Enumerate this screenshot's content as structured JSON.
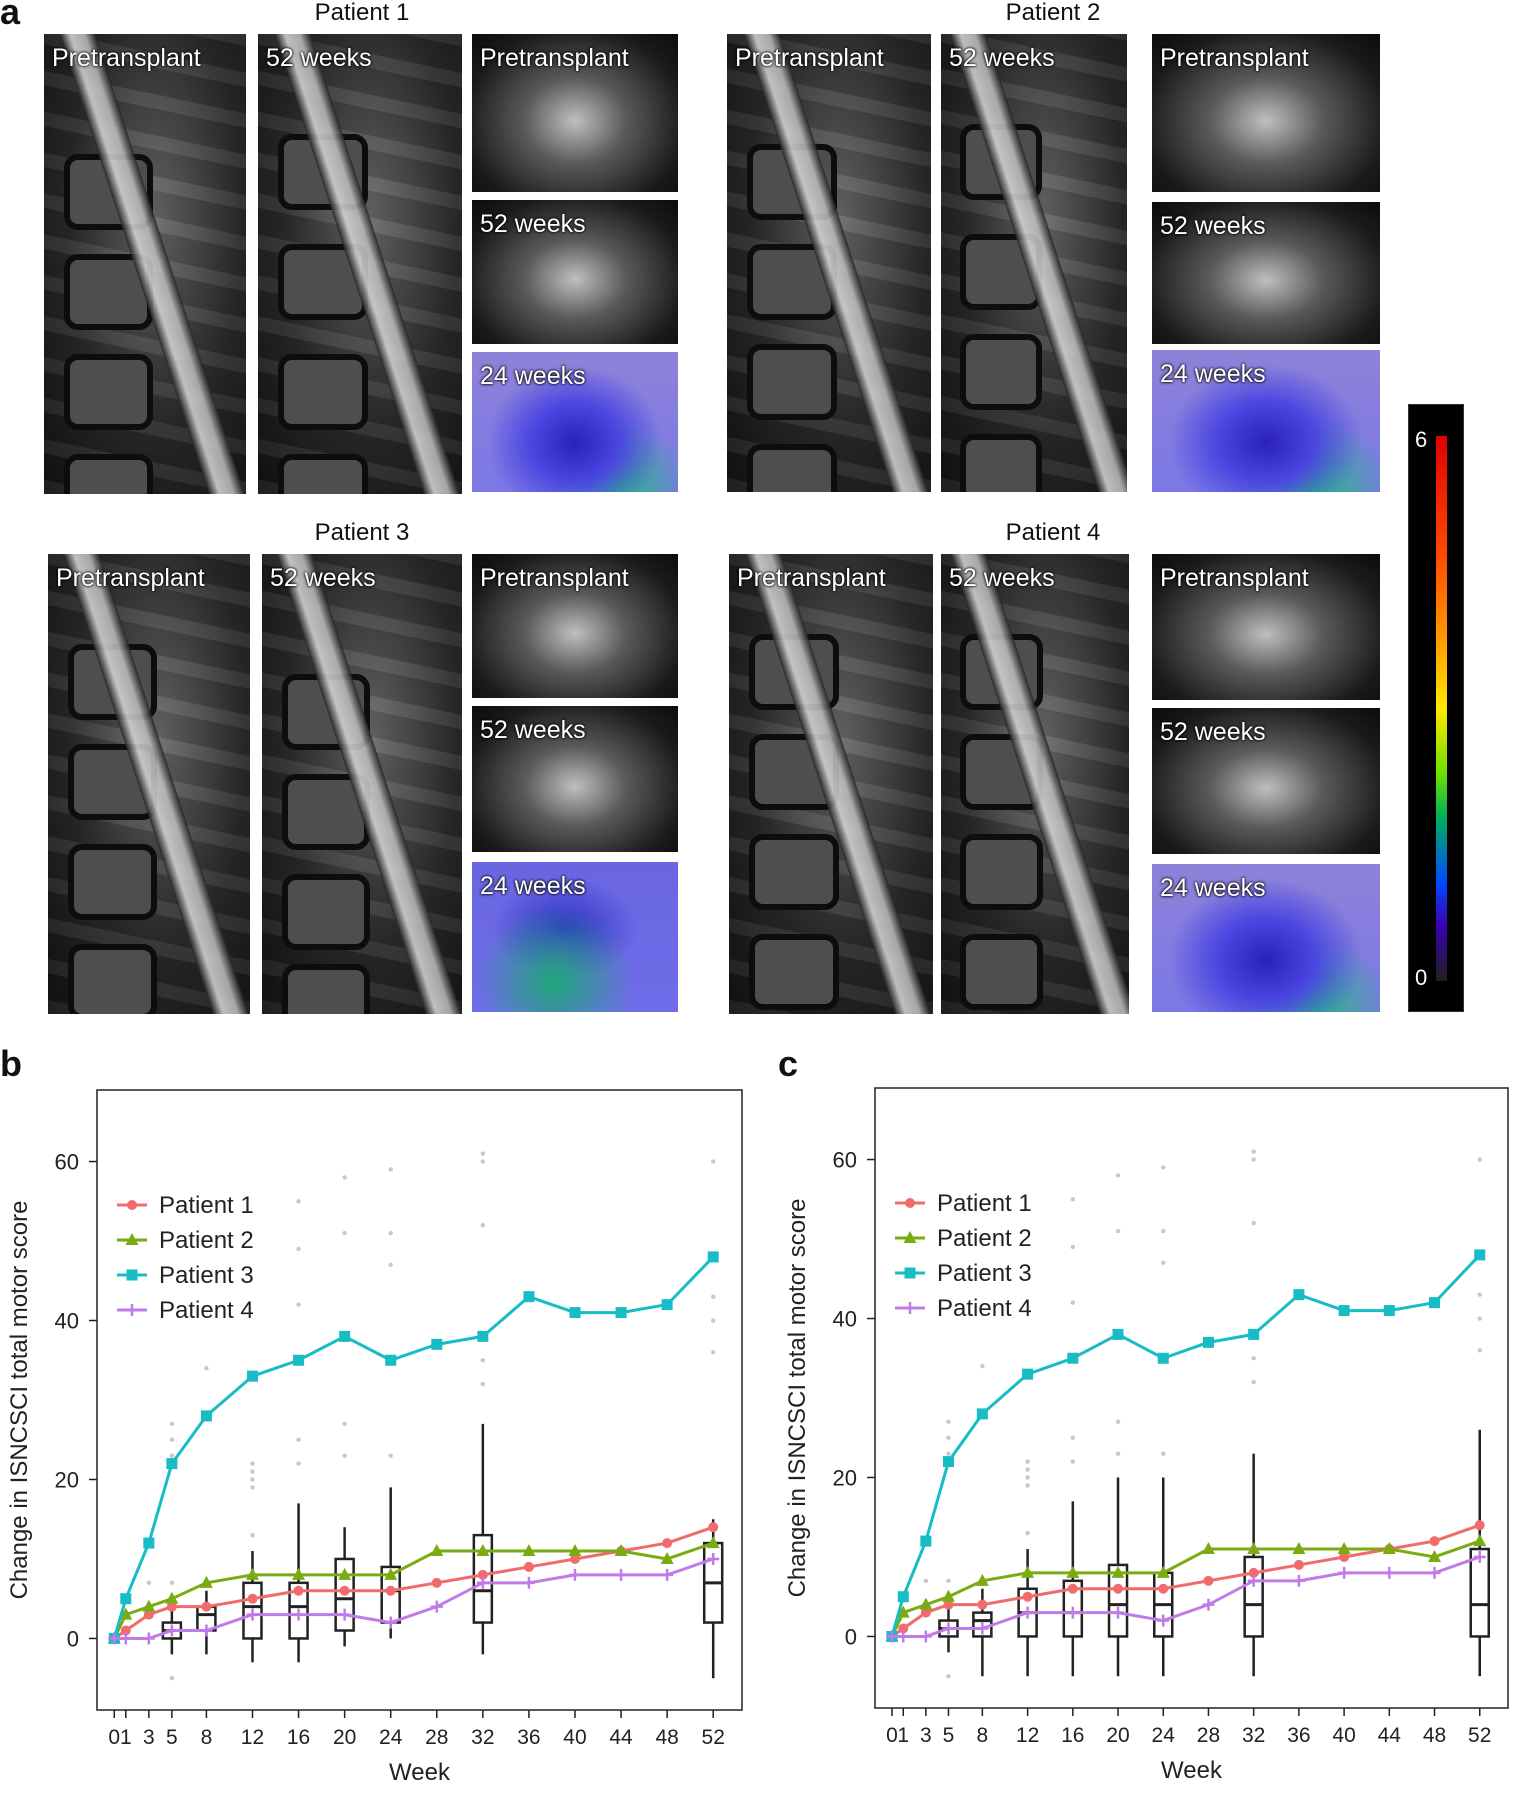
{
  "panel_a": {
    "letter": "a",
    "patients": [
      {
        "title": "Patient 1",
        "pre": "Pretransplant",
        "post": "52 weeks",
        "axial_pre": "Pretransplant",
        "axial_post": "52 weeks",
        "map": "24 weeks"
      },
      {
        "title": "Patient 2",
        "pre": "Pretransplant",
        "post": "52 weeks",
        "axial_pre": "Pretransplant",
        "axial_post": "52 weeks",
        "map": "24 weeks"
      },
      {
        "title": "Patient 3",
        "pre": "Pretransplant",
        "post": "52 weeks",
        "axial_pre": "Pretransplant",
        "axial_post": "52 weeks",
        "map": "24 weeks"
      },
      {
        "title": "Patient 4",
        "pre": "Pretransplant",
        "post": "52 weeks",
        "axial_pre": "Pretransplant",
        "axial_post": "52 weeks",
        "map": "24 weeks"
      }
    ],
    "colorbar": {
      "max": "6",
      "min": "0"
    }
  },
  "chart_data": [
    {
      "panel": "b",
      "type": "line",
      "xlabel": "Week",
      "ylabel": "Change in ISNCSCI total motor score",
      "ylim": [
        -9,
        69
      ],
      "yticks": [
        0,
        20,
        40,
        60
      ],
      "x": [
        0,
        1,
        3,
        5,
        8,
        12,
        16,
        20,
        24,
        28,
        32,
        36,
        40,
        44,
        48,
        52
      ],
      "xtick_labels": [
        "0",
        "1",
        "3",
        "5",
        "8",
        "12",
        "16",
        "20",
        "24",
        "28",
        "32",
        "36",
        "40",
        "44",
        "48",
        "52"
      ],
      "legend_position": "top-left",
      "series": [
        {
          "name": "Patient 1",
          "color": "#f06c6c",
          "marker": "circle",
          "x": [
            0,
            1,
            3,
            5,
            8,
            12,
            16,
            20,
            24,
            28,
            32,
            36,
            40,
            44,
            48,
            52
          ],
          "values": [
            0,
            1,
            3,
            4,
            4,
            5,
            6,
            6,
            6,
            7,
            8,
            9,
            10,
            11,
            12,
            14
          ]
        },
        {
          "name": "Patient 2",
          "color": "#7aab12",
          "marker": "triangle",
          "x": [
            0,
            1,
            3,
            5,
            8,
            12,
            16,
            20,
            24,
            28,
            32,
            36,
            40,
            44,
            48,
            52
          ],
          "values": [
            0,
            3,
            4,
            5,
            7,
            8,
            8,
            8,
            8,
            11,
            11,
            11,
            11,
            11,
            10,
            12
          ]
        },
        {
          "name": "Patient 3",
          "color": "#17bcc4",
          "marker": "square",
          "x": [
            0,
            1,
            3,
            5,
            8,
            12,
            16,
            20,
            24,
            28,
            32,
            36,
            40,
            44,
            48,
            52
          ],
          "values": [
            0,
            5,
            12,
            22,
            28,
            33,
            35,
            38,
            35,
            37,
            38,
            43,
            41,
            41,
            42,
            48
          ]
        },
        {
          "name": "Patient 4",
          "color": "#c17be8",
          "marker": "plus",
          "x": [
            0,
            1,
            3,
            5,
            8,
            12,
            16,
            20,
            24,
            28,
            32,
            36,
            40,
            44,
            48,
            52
          ],
          "values": [
            0,
            0,
            0,
            1,
            1,
            3,
            3,
            3,
            2,
            4,
            7,
            7,
            8,
            8,
            8,
            10
          ]
        }
      ],
      "boxplots": [
        {
          "x": 5,
          "q1": 0,
          "median": 1,
          "q3": 2,
          "lo": -2,
          "hi": 4
        },
        {
          "x": 8,
          "q1": 1,
          "median": 3,
          "q3": 4,
          "lo": -2,
          "hi": 6
        },
        {
          "x": 12,
          "q1": 0,
          "median": 4,
          "q3": 7,
          "lo": -3,
          "hi": 11
        },
        {
          "x": 16,
          "q1": 0,
          "median": 4,
          "q3": 7,
          "lo": -3,
          "hi": 17
        },
        {
          "x": 20,
          "q1": 1,
          "median": 5,
          "q3": 10,
          "lo": -1,
          "hi": 14
        },
        {
          "x": 24,
          "q1": 2,
          "median": 6,
          "q3": 9,
          "lo": 0,
          "hi": 19
        },
        {
          "x": 32,
          "q1": 2,
          "median": 6,
          "q3": 13,
          "lo": -2,
          "hi": 27
        },
        {
          "x": 52,
          "q1": 2,
          "median": 7,
          "q3": 12,
          "lo": -5,
          "hi": 15
        }
      ],
      "outliers": [
        [
          8,
          34
        ],
        [
          5,
          27
        ],
        [
          5,
          25
        ],
        [
          5,
          23
        ],
        [
          3,
          7
        ],
        [
          5,
          7
        ],
        [
          5,
          -5
        ],
        [
          12,
          22
        ],
        [
          12,
          21
        ],
        [
          12,
          20
        ],
        [
          12,
          19
        ],
        [
          12,
          13
        ],
        [
          16,
          55
        ],
        [
          16,
          49
        ],
        [
          16,
          42
        ],
        [
          16,
          25
        ],
        [
          16,
          22
        ],
        [
          20,
          58
        ],
        [
          20,
          51
        ],
        [
          20,
          27
        ],
        [
          20,
          23
        ],
        [
          24,
          59
        ],
        [
          24,
          51
        ],
        [
          24,
          47
        ],
        [
          24,
          23
        ],
        [
          32,
          61
        ],
        [
          32,
          60
        ],
        [
          32,
          52
        ],
        [
          32,
          35
        ],
        [
          32,
          32
        ],
        [
          52,
          60
        ],
        [
          52,
          43
        ],
        [
          52,
          40
        ],
        [
          52,
          36
        ]
      ]
    },
    {
      "panel": "c",
      "type": "line",
      "xlabel": "Week",
      "ylabel": "Change in ISNCSCI total motor score",
      "ylim": [
        -9,
        69
      ],
      "yticks": [
        0,
        20,
        40,
        60
      ],
      "x": [
        0,
        1,
        3,
        5,
        8,
        12,
        16,
        20,
        24,
        28,
        32,
        36,
        40,
        44,
        48,
        52
      ],
      "xtick_labels": [
        "0",
        "1",
        "3",
        "5",
        "8",
        "12",
        "16",
        "20",
        "24",
        "28",
        "32",
        "36",
        "40",
        "44",
        "48",
        "52"
      ],
      "legend_position": "top-left",
      "series": [
        {
          "name": "Patient 1",
          "color": "#f06c6c",
          "marker": "circle",
          "x": [
            0,
            1,
            3,
            5,
            8,
            12,
            16,
            20,
            24,
            28,
            32,
            36,
            40,
            44,
            48,
            52
          ],
          "values": [
            0,
            1,
            3,
            4,
            4,
            5,
            6,
            6,
            6,
            7,
            8,
            9,
            10,
            11,
            12,
            14
          ]
        },
        {
          "name": "Patient 2",
          "color": "#7aab12",
          "marker": "triangle",
          "x": [
            0,
            1,
            3,
            5,
            8,
            12,
            16,
            20,
            24,
            28,
            32,
            36,
            40,
            44,
            48,
            52
          ],
          "values": [
            0,
            3,
            4,
            5,
            7,
            8,
            8,
            8,
            8,
            11,
            11,
            11,
            11,
            11,
            10,
            12
          ]
        },
        {
          "name": "Patient 3",
          "color": "#17bcc4",
          "marker": "square",
          "x": [
            0,
            1,
            3,
            5,
            8,
            12,
            16,
            20,
            24,
            28,
            32,
            36,
            40,
            44,
            48,
            52
          ],
          "values": [
            0,
            5,
            12,
            22,
            28,
            33,
            35,
            38,
            35,
            37,
            38,
            43,
            41,
            41,
            42,
            48
          ]
        },
        {
          "name": "Patient 4",
          "color": "#c17be8",
          "marker": "plus",
          "x": [
            0,
            1,
            3,
            5,
            8,
            12,
            16,
            20,
            24,
            28,
            32,
            36,
            40,
            44,
            48,
            52
          ],
          "values": [
            0,
            0,
            0,
            1,
            1,
            3,
            3,
            3,
            2,
            4,
            7,
            7,
            8,
            8,
            8,
            10
          ]
        }
      ],
      "boxplots": [
        {
          "x": 5,
          "q1": 0,
          "median": 1,
          "q3": 2,
          "lo": -2,
          "hi": 4
        },
        {
          "x": 8,
          "q1": 0,
          "median": 2,
          "q3": 3,
          "lo": -5,
          "hi": 6
        },
        {
          "x": 12,
          "q1": 0,
          "median": 3,
          "q3": 6,
          "lo": -5,
          "hi": 11
        },
        {
          "x": 16,
          "q1": 0,
          "median": 3,
          "q3": 7,
          "lo": -5,
          "hi": 17
        },
        {
          "x": 20,
          "q1": 0,
          "median": 4,
          "q3": 9,
          "lo": -5,
          "hi": 20
        },
        {
          "x": 24,
          "q1": 0,
          "median": 4,
          "q3": 8,
          "lo": -5,
          "hi": 20
        },
        {
          "x": 32,
          "q1": 0,
          "median": 4,
          "q3": 10,
          "lo": -5,
          "hi": 23
        },
        {
          "x": 52,
          "q1": 0,
          "median": 4,
          "q3": 11,
          "lo": -5,
          "hi": 26
        }
      ],
      "outliers": [
        [
          8,
          34
        ],
        [
          5,
          27
        ],
        [
          5,
          25
        ],
        [
          5,
          23
        ],
        [
          3,
          7
        ],
        [
          5,
          7
        ],
        [
          5,
          -5
        ],
        [
          12,
          22
        ],
        [
          12,
          21
        ],
        [
          12,
          20
        ],
        [
          12,
          19
        ],
        [
          12,
          13
        ],
        [
          16,
          55
        ],
        [
          16,
          49
        ],
        [
          16,
          42
        ],
        [
          16,
          25
        ],
        [
          16,
          22
        ],
        [
          20,
          58
        ],
        [
          20,
          51
        ],
        [
          20,
          27
        ],
        [
          20,
          23
        ],
        [
          24,
          59
        ],
        [
          24,
          51
        ],
        [
          24,
          47
        ],
        [
          24,
          23
        ],
        [
          32,
          61
        ],
        [
          32,
          60
        ],
        [
          32,
          52
        ],
        [
          32,
          35
        ],
        [
          32,
          32
        ],
        [
          52,
          60
        ],
        [
          52,
          43
        ],
        [
          52,
          40
        ],
        [
          52,
          36
        ]
      ]
    }
  ]
}
